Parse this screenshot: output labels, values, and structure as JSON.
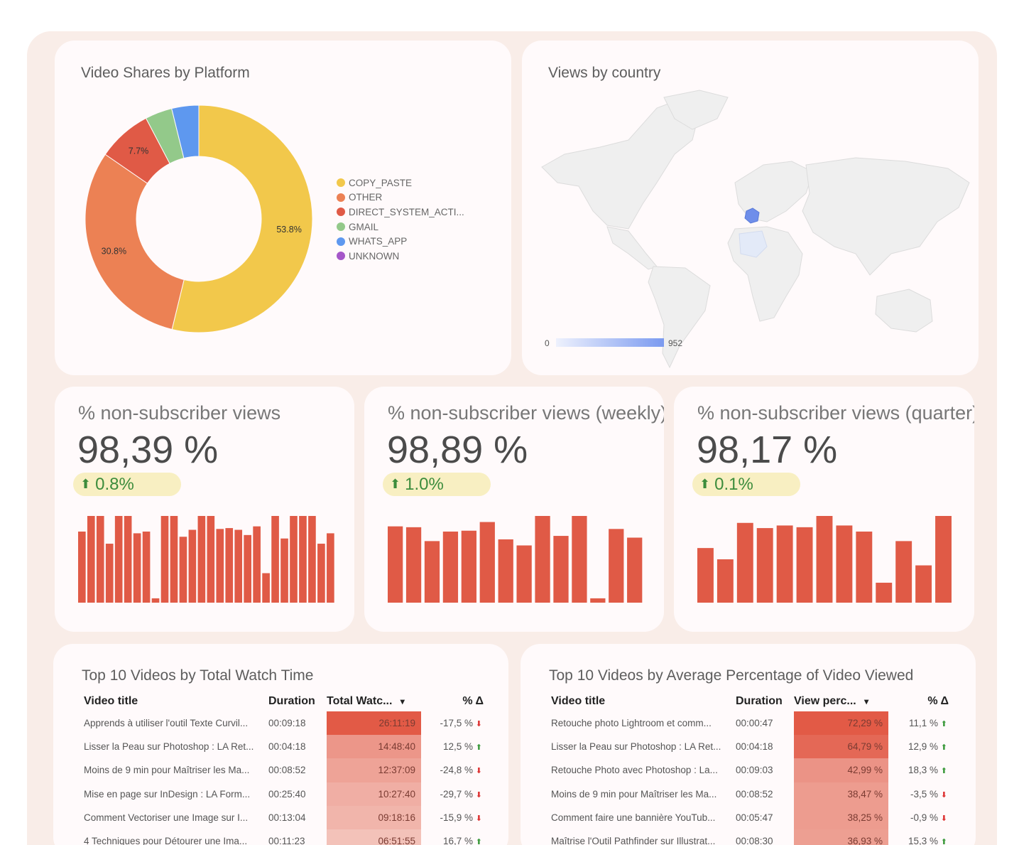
{
  "donut_card": {
    "title": "Video Shares by Platform",
    "chart_data": {
      "type": "pie",
      "donut": true,
      "slices": [
        {
          "name": "COPY_PASTE",
          "value": 53.8,
          "label": "53.8%",
          "color": "#f2c84b"
        },
        {
          "name": "OTHER",
          "value": 30.8,
          "label": "30.8%",
          "color": "#ec8154"
        },
        {
          "name": "DIRECT_SYSTEM_ACTI...",
          "value": 7.7,
          "label": "7.7%",
          "color": "#e05a46"
        },
        {
          "name": "GMAIL",
          "value": 3.85,
          "label": "",
          "color": "#93c98a"
        },
        {
          "name": "WHATS_APP",
          "value": 3.85,
          "label": "",
          "color": "#5e98ef"
        },
        {
          "name": "UNKNOWN",
          "value": 0,
          "label": "",
          "color": "#a557c9"
        }
      ],
      "legend_position": "right"
    }
  },
  "map_card": {
    "title": "Views by country",
    "scale_min": "0",
    "scale_max": "952",
    "highlight_color": "#6f8eea"
  },
  "kpis": [
    {
      "title": "% non-subscriber views",
      "value": "98,39 %",
      "delta": "0.8%",
      "chart_data": {
        "type": "bar",
        "color": "#e05a46",
        "values": [
          82,
          100,
          100,
          68,
          100,
          100,
          80,
          82,
          5,
          100,
          100,
          76,
          84,
          100,
          100,
          85,
          86,
          84,
          78,
          88,
          34,
          100,
          74,
          100,
          100,
          100,
          68,
          80
        ]
      }
    },
    {
      "title": "% non-subscriber views (weekly)",
      "value": "98,89 %",
      "delta": "1.0%",
      "chart_data": {
        "type": "bar",
        "color": "#e05a46",
        "values": [
          88,
          87,
          71,
          82,
          83,
          93,
          73,
          66,
          100,
          77,
          100,
          5,
          85,
          75
        ]
      }
    },
    {
      "title": "% non-subscriber views (quarter)",
      "value": "98,17 %",
      "delta": "0.1%",
      "chart_data": {
        "type": "bar",
        "color": "#e05a46",
        "values": [
          63,
          50,
          92,
          86,
          89,
          87,
          100,
          89,
          82,
          23,
          71,
          43,
          100
        ]
      }
    }
  ],
  "table_left": {
    "title": "Top 10 Videos by Total Watch Time",
    "columns": [
      "Video title",
      "Duration",
      "Total Watc...",
      "% Δ"
    ],
    "rows": [
      {
        "title": "Apprends à utiliser l'outil Texte Curvil...",
        "duration": "00:09:18",
        "metric": "26:11:19",
        "heat": 1.0,
        "delta": "-17,5 %",
        "dir": "down"
      },
      {
        "title": "Lisser la Peau sur Photoshop : LA Ret...",
        "duration": "00:04:18",
        "metric": "14:48:40",
        "heat": 0.57,
        "delta": "12,5 %",
        "dir": "up"
      },
      {
        "title": "Moins de 9 min pour Maîtriser les Ma...",
        "duration": "00:08:52",
        "metric": "12:37:09",
        "heat": 0.48,
        "delta": "-24,8 %",
        "dir": "down"
      },
      {
        "title": "Mise en page sur InDesign : LA Form...",
        "duration": "00:25:40",
        "metric": "10:27:40",
        "heat": 0.4,
        "delta": "-29,7 %",
        "dir": "down"
      },
      {
        "title": "Comment Vectoriser une Image sur I...",
        "duration": "00:13:04",
        "metric": "09:18:16",
        "heat": 0.35,
        "delta": "-15,9 %",
        "dir": "down"
      },
      {
        "title": "4 Techniques pour Détourer une Ima...",
        "duration": "00:11:23",
        "metric": "06:51:55",
        "heat": 0.26,
        "delta": "16,7 %",
        "dir": "up"
      }
    ]
  },
  "table_right": {
    "title": "Top 10 Videos by Average Percentage of Video Viewed",
    "columns": [
      "Video title",
      "Duration",
      "View perc...",
      "% Δ"
    ],
    "rows": [
      {
        "title": "Retouche photo Lightroom et comm...",
        "duration": "00:00:47",
        "metric": "72,29 %",
        "heat": 1.0,
        "delta": "11,1 %",
        "dir": "up"
      },
      {
        "title": "Lisser la Peau sur Photoshop : LA Ret...",
        "duration": "00:04:18",
        "metric": "64,79 %",
        "heat": 0.9,
        "delta": "12,9 %",
        "dir": "up"
      },
      {
        "title": "Retouche Photo avec Photoshop : La...",
        "duration": "00:09:03",
        "metric": "42,99 %",
        "heat": 0.59,
        "delta": "18,3 %",
        "dir": "up"
      },
      {
        "title": "Moins de 9 min pour Maîtriser les Ma...",
        "duration": "00:08:52",
        "metric": "38,47 %",
        "heat": 0.53,
        "delta": "-3,5 %",
        "dir": "down"
      },
      {
        "title": "Comment faire une bannière YouTub...",
        "duration": "00:05:47",
        "metric": "38,25 %",
        "heat": 0.53,
        "delta": "-0,9 %",
        "dir": "down"
      },
      {
        "title": "Maîtrise l'Outil Pathfinder sur Illustrat...",
        "duration": "00:08:30",
        "metric": "36,93 %",
        "heat": 0.51,
        "delta": "15,3 %",
        "dir": "up"
      }
    ]
  }
}
